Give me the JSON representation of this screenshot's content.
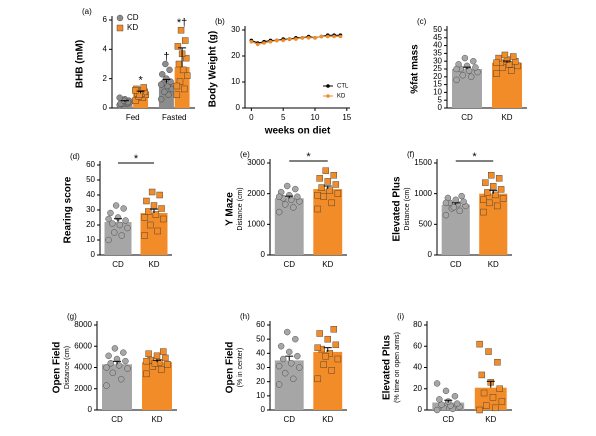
{
  "chart_data": [
    {
      "type": "grouped-bar-dots",
      "label": "(a)",
      "ylabel": "BHB (mM)",
      "categories": [
        "Fed",
        "Fasted"
      ],
      "ylim": [
        0,
        6
      ],
      "yticks": [
        0,
        2,
        4,
        6
      ],
      "legend": "top-left",
      "annotations": [
        "*",
        "†",
        "*†"
      ],
      "series": [
        {
          "name": "CD",
          "color": "#8c8c8c",
          "marker": "circle",
          "values": [
            0.4,
            1.7
          ],
          "errors": [
            0.1,
            0.25
          ],
          "points": [
            [
              0.2,
              0.3,
              0.3,
              0.4,
              0.4,
              0.5,
              0.5,
              0.6,
              0.3,
              0.4,
              0.5,
              0.7
            ],
            [
              0.6,
              0.9,
              1.1,
              1.3,
              1.5,
              1.7,
              1.8,
              2.0,
              2.3,
              2.6,
              3.0,
              1.6
            ]
          ]
        },
        {
          "name": "KD",
          "color": "#f28c28",
          "marker": "square",
          "values": [
            1.0,
            2.8
          ],
          "errors": [
            0.15,
            1.3
          ],
          "points": [
            [
              0.5,
              0.7,
              0.8,
              0.9,
              1.0,
              1.0,
              1.1,
              1.2,
              1.3,
              1.4,
              0.9,
              1.2
            ],
            [
              0.9,
              1.3,
              1.8,
              2.2,
              2.6,
              3.0,
              3.4,
              3.7,
              4.2,
              4.6,
              5.3,
              1.5
            ]
          ]
        }
      ]
    },
    {
      "type": "line",
      "label": "(b)",
      "ylabel": "Body Weight (g)",
      "xlabel": "weeks on diet",
      "x": [
        0,
        1,
        2,
        3,
        4,
        5,
        6,
        7,
        8,
        9,
        10,
        11,
        12,
        13,
        14
      ],
      "xlim": [
        -1,
        15.5
      ],
      "xticks": [
        0,
        5,
        10,
        15
      ],
      "ylim": [
        0,
        30
      ],
      "yticks": [
        0,
        10,
        20,
        30
      ],
      "legend": "bottom-right",
      "series": [
        {
          "name": "CTL",
          "color": "#000000",
          "values": [
            26,
            25,
            25.5,
            26,
            26,
            26.5,
            26.5,
            27,
            27,
            27.5,
            27,
            27.5,
            28,
            28,
            28
          ]
        },
        {
          "name": "KD",
          "color": "#f28c28",
          "values": [
            25.5,
            24.5,
            25,
            25.5,
            26,
            26,
            26.5,
            26.5,
            27,
            27,
            27,
            27.5,
            27.5,
            27.5,
            27.5
          ]
        }
      ]
    },
    {
      "type": "bar-dots",
      "label": "(c)",
      "ylabel": "%fat mass",
      "categories": [
        "CD",
        "KD"
      ],
      "colors": [
        "#a6a6a6",
        "#f28c28"
      ],
      "ylim": [
        0,
        50
      ],
      "yticks": [
        0,
        5,
        10,
        15,
        20,
        25,
        30,
        35,
        40,
        45,
        50
      ],
      "values": [
        25,
        29
      ],
      "errors": [
        1.2,
        1.1
      ],
      "points": [
        [
          18,
          20,
          21,
          23,
          24,
          25,
          26,
          27,
          28,
          30,
          32,
          25
        ],
        [
          22,
          24,
          26,
          27,
          28,
          29,
          30,
          31,
          32,
          33,
          34,
          29
        ]
      ]
    },
    {
      "type": "bar-dots",
      "label": "(d)",
      "ylabel": "Rearing score",
      "categories": [
        "CD",
        "KD"
      ],
      "colors": [
        "#a6a6a6",
        "#f28c28"
      ],
      "ylim": [
        0,
        60
      ],
      "yticks": [
        0,
        10,
        20,
        30,
        40,
        50,
        60
      ],
      "values": [
        22,
        28
      ],
      "errors": [
        2.2,
        2.6
      ],
      "significance": "*",
      "points": [
        [
          10,
          13,
          15,
          18,
          20,
          21,
          23,
          25,
          28,
          31,
          33,
          24
        ],
        [
          13,
          16,
          20,
          24,
          27,
          29,
          31,
          33,
          36,
          40,
          42,
          25
        ]
      ]
    },
    {
      "type": "bar-dots",
      "label": "(e)",
      "ylabel": "Y Maze",
      "ylabel2": "Distance (cm)",
      "categories": [
        "CD",
        "KD"
      ],
      "colors": [
        "#a6a6a6",
        "#f28c28"
      ],
      "ylim": [
        0,
        3000
      ],
      "yticks": [
        0,
        1000,
        2000,
        3000
      ],
      "values": [
        1850,
        2150
      ],
      "errors": [
        70,
        100
      ],
      "significance": "*",
      "points": [
        [
          1400,
          1550,
          1650,
          1750,
          1800,
          1850,
          1900,
          1950,
          2050,
          2150,
          2250,
          1900
        ],
        [
          1500,
          1700,
          1900,
          2000,
          2100,
          2200,
          2300,
          2400,
          2500,
          2600,
          2750,
          1950
        ]
      ]
    },
    {
      "type": "bar-dots",
      "label": "(f)",
      "ylabel": "Elevated Plus",
      "ylabel2": "Distance (cm)",
      "categories": [
        "CD",
        "KD"
      ],
      "colors": [
        "#a6a6a6",
        "#f28c28"
      ],
      "ylim": [
        0,
        1500
      ],
      "yticks": [
        0,
        500,
        1000,
        1500
      ],
      "values": [
        820,
        1000
      ],
      "errors": [
        30,
        55
      ],
      "significance": "*",
      "points": [
        [
          650,
          720,
          760,
          800,
          830,
          850,
          870,
          900,
          930,
          960,
          780,
          850
        ],
        [
          700,
          800,
          850,
          920,
          980,
          1020,
          1070,
          1120,
          1180,
          1250,
          1300,
          900
        ]
      ]
    },
    {
      "type": "bar-dots",
      "label": "(g)",
      "ylabel": "Open Field",
      "ylabel2": "Distance (cm)",
      "categories": [
        "CD",
        "KD"
      ],
      "colors": [
        "#a6a6a6",
        "#f28c28"
      ],
      "ylim": [
        0,
        8000
      ],
      "yticks": [
        0,
        2000,
        4000,
        6000,
        8000
      ],
      "values": [
        4300,
        4500
      ],
      "errors": [
        280,
        180
      ],
      "points": [
        [
          2300,
          2900,
          3500,
          3900,
          4200,
          4400,
          4600,
          4800,
          5100,
          5400,
          5800,
          4000
        ],
        [
          3400,
          3800,
          4100,
          4300,
          4500,
          4700,
          4900,
          5100,
          5300,
          5500,
          4400,
          4600
        ]
      ]
    },
    {
      "type": "bar-dots",
      "label": "(h)",
      "ylabel": "Open Field",
      "ylabel2": "(% in center)",
      "categories": [
        "CD",
        "KD"
      ],
      "colors": [
        "#a6a6a6",
        "#f28c28"
      ],
      "ylim": [
        0,
        60
      ],
      "yticks": [
        0,
        10,
        20,
        30,
        40,
        50,
        60
      ],
      "values": [
        35,
        41
      ],
      "errors": [
        3,
        3
      ],
      "points": [
        [
          18,
          22,
          26,
          30,
          33,
          36,
          38,
          41,
          45,
          50,
          55,
          31
        ],
        [
          22,
          28,
          32,
          36,
          40,
          43,
          46,
          50,
          54,
          57,
          38,
          44
        ]
      ]
    },
    {
      "type": "bar-dots",
      "label": "(i)",
      "ylabel": "Elevated Plus",
      "ylabel2": "(% time on open arms)",
      "categories": [
        "CD",
        "KD"
      ],
      "colors": [
        "#a6a6a6",
        "#f28c28"
      ],
      "ylim": [
        0,
        80
      ],
      "yticks": [
        0,
        20,
        40,
        60,
        80
      ],
      "values": [
        7,
        21
      ],
      "errors": [
        2.2,
        6
      ],
      "points": [
        [
          0,
          1,
          2,
          3,
          4,
          5,
          6,
          8,
          10,
          13,
          18,
          25
        ],
        [
          0,
          2,
          4,
          8,
          12,
          16,
          20,
          26,
          33,
          45,
          55,
          62
        ]
      ]
    }
  ]
}
